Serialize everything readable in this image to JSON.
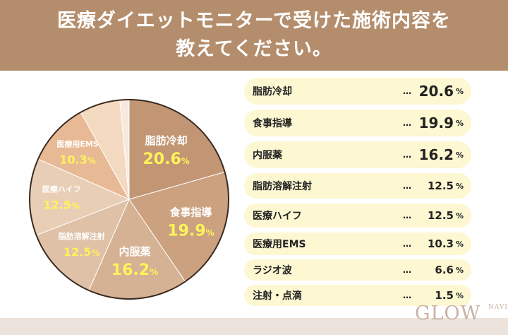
{
  "header": {
    "title_line1": "医療ダイエットモニターで受けた施術内容を",
    "title_line2": "教えてください。"
  },
  "logo": {
    "text": "GLOW",
    "sub": "NAVI"
  },
  "chart_data": {
    "type": "pie",
    "start": "top",
    "direction": "clockwise",
    "unit": "%",
    "slices": [
      {
        "label": "脂肪冷却",
        "value": 20.6,
        "color": "#c29674"
      },
      {
        "label": "食事指導",
        "value": 19.9,
        "color": "#cba17f"
      },
      {
        "label": "内服薬",
        "value": 16.2,
        "color": "#d5b293"
      },
      {
        "label": "脂肪溶解注射",
        "value": 12.5,
        "color": "#dfc1a7"
      },
      {
        "label": "医療ハイフ",
        "value": 12.5,
        "color": "#e9ceb6"
      },
      {
        "label": "医療用EMS",
        "value": 10.3,
        "color": "#e8b995"
      },
      {
        "label": "ラジオ波",
        "value": 6.6,
        "color": "#f3d9c0"
      },
      {
        "label": "注射・点滴",
        "value": 1.5,
        "color": "#f8e9de"
      }
    ],
    "value_label_color": "#fff35a",
    "list_bg": "#fdf7d2"
  }
}
